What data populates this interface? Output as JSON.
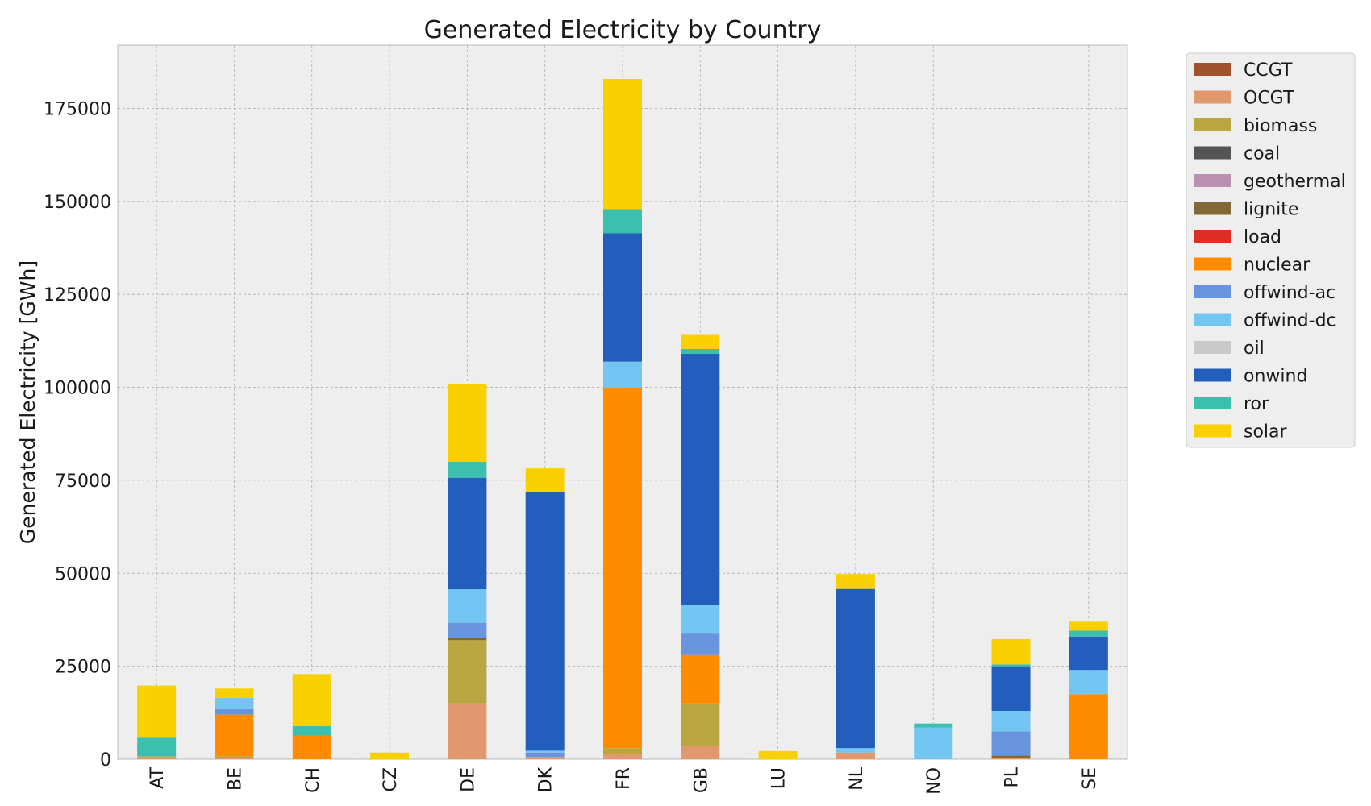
{
  "chart_data": {
    "type": "bar",
    "stacked": true,
    "title": "Generated Electricity by Country",
    "xlabel": "",
    "ylabel": "Generated Electricity [GWh]",
    "ylim": [
      0,
      192000
    ],
    "yticks": [
      0,
      25000,
      50000,
      75000,
      100000,
      125000,
      150000,
      175000
    ],
    "grid": true,
    "legend_position": "outside-top-right",
    "categories": [
      "AT",
      "BE",
      "CH",
      "CZ",
      "DE",
      "DK",
      "FR",
      "GB",
      "LU",
      "NL",
      "NO",
      "PL",
      "SE"
    ],
    "series": [
      {
        "name": "CCGT",
        "color": "#a0522d",
        "values": [
          0,
          0,
          0,
          0,
          0,
          0,
          0,
          0,
          0,
          0,
          0,
          0,
          0
        ]
      },
      {
        "name": "OCGT",
        "color": "#e0986c",
        "values": [
          500,
          300,
          0,
          0,
          15000,
          600,
          1500,
          3500,
          0,
          1800,
          0,
          400,
          0
        ]
      },
      {
        "name": "biomass",
        "color": "#baa741",
        "values": [
          300,
          500,
          0,
          0,
          17000,
          0,
          1500,
          11500,
          0,
          0,
          0,
          0,
          0
        ]
      },
      {
        "name": "coal",
        "color": "#545454",
        "values": [
          0,
          0,
          0,
          0,
          0,
          0,
          0,
          0,
          0,
          0,
          0,
          0,
          0
        ]
      },
      {
        "name": "geothermal",
        "color": "#ba91b1",
        "values": [
          0,
          0,
          0,
          0,
          0,
          0,
          0,
          0,
          0,
          0,
          0,
          0,
          0
        ]
      },
      {
        "name": "lignite",
        "color": "#826837",
        "values": [
          0,
          0,
          0,
          0,
          700,
          0,
          0,
          0,
          0,
          0,
          0,
          600,
          0
        ]
      },
      {
        "name": "load",
        "color": "#dd2e23",
        "values": [
          0,
          0,
          0,
          0,
          0,
          0,
          0,
          0,
          0,
          0,
          0,
          0,
          0
        ]
      },
      {
        "name": "nuclear",
        "color": "#ff8c00",
        "values": [
          0,
          11200,
          6400,
          0,
          0,
          0,
          96700,
          13000,
          0,
          0,
          0,
          0,
          17500
        ]
      },
      {
        "name": "offwind-ac",
        "color": "#6895dd",
        "values": [
          0,
          1500,
          0,
          0,
          4000,
          1200,
          0,
          6000,
          0,
          0,
          0,
          6500,
          0
        ]
      },
      {
        "name": "offwind-dc",
        "color": "#74c6f2",
        "values": [
          0,
          3000,
          0,
          0,
          9000,
          500,
          7200,
          7500,
          0,
          1200,
          8500,
          5500,
          6500
        ]
      },
      {
        "name": "oil",
        "color": "#c9c9c9",
        "values": [
          0,
          0,
          0,
          0,
          0,
          0,
          0,
          0,
          0,
          0,
          0,
          0,
          0
        ]
      },
      {
        "name": "onwind",
        "color": "#235ebc",
        "values": [
          0,
          0,
          0,
          0,
          30000,
          69500,
          34500,
          67500,
          0,
          42800,
          0,
          12000,
          9000
        ]
      },
      {
        "name": "ror",
        "color": "#3dbfb0",
        "values": [
          5000,
          0,
          2500,
          0,
          4300,
          0,
          6500,
          1300,
          0,
          0,
          1100,
          500,
          1600
        ]
      },
      {
        "name": "solar",
        "color": "#f9d002",
        "values": [
          14000,
          2500,
          14000,
          1800,
          21000,
          6400,
          35000,
          3800,
          2200,
          4000,
          0,
          6800,
          2400
        ]
      }
    ]
  }
}
